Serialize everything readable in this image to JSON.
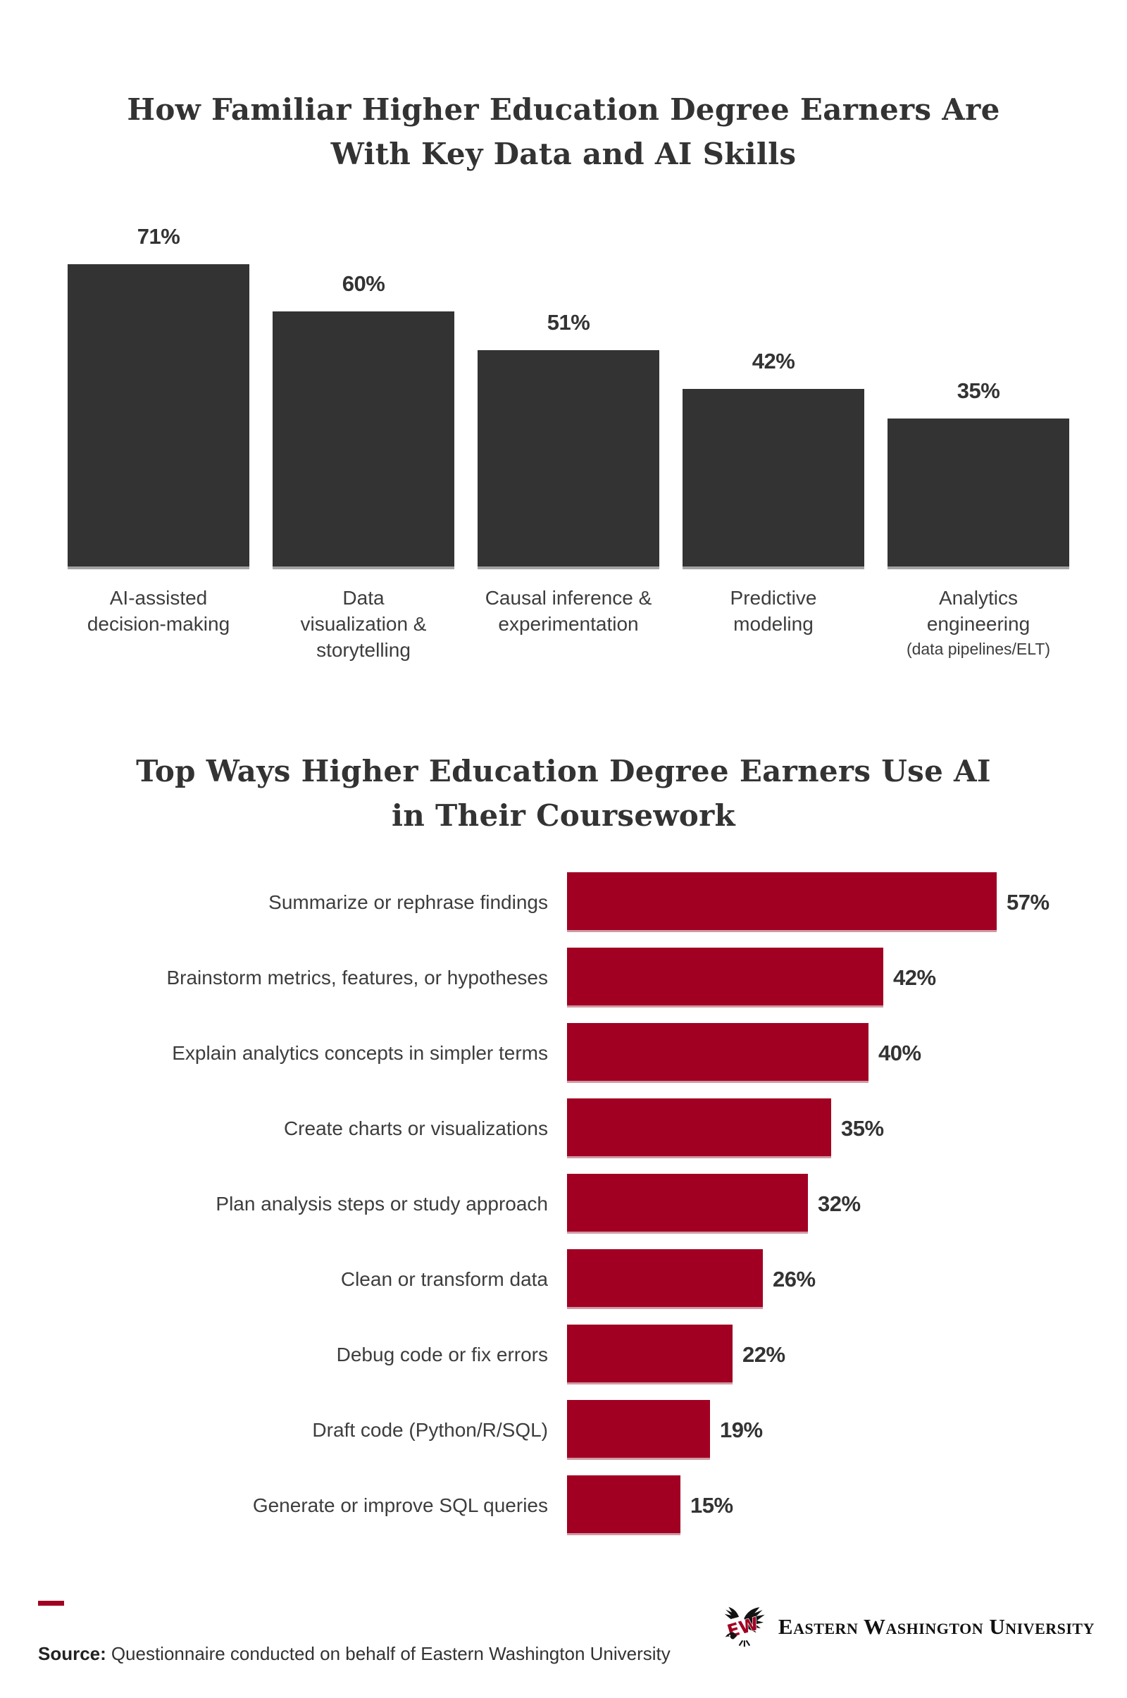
{
  "colors": {
    "bar_dark": "#333333",
    "accent_red": "#A10022",
    "title_text": "#333333",
    "body_text": "#3d3d3d",
    "logo_text": "#111111"
  },
  "chart1": {
    "title_line1": "How Familiar Higher Education Degree Earners Are",
    "title_line2": "With Key Data and AI Skills",
    "bars": [
      {
        "value_label": "71%",
        "line1": "AI-assisted",
        "line2": "decision-making"
      },
      {
        "value_label": "60%",
        "line1": "Data",
        "line2": "visualization &",
        "line3": "storytelling"
      },
      {
        "value_label": "51%",
        "line1": "Causal inference &",
        "line2": "experimentation"
      },
      {
        "value_label": "42%",
        "line1": "Predictive",
        "line2": "modeling"
      },
      {
        "value_label": "35%",
        "line1": "Analytics",
        "line2": "engineering",
        "sub": "(data pipelines/ELT)"
      }
    ]
  },
  "chart2": {
    "title_line1": "Top Ways Higher Education Degree Earners Use AI",
    "title_line2": "in Their Coursework",
    "rows": [
      {
        "label": "Summarize or rephrase findings",
        "value_label": "57%"
      },
      {
        "label": "Brainstorm metrics, features, or hypotheses",
        "value_label": "42%"
      },
      {
        "label": "Explain analytics concepts in simpler terms",
        "value_label": "40%"
      },
      {
        "label": "Create charts or visualizations",
        "value_label": "35%"
      },
      {
        "label": "Plan analysis steps or study approach",
        "value_label": "32%"
      },
      {
        "label": "Clean or transform data",
        "value_label": "26%"
      },
      {
        "label": "Debug code or fix errors",
        "value_label": "22%"
      },
      {
        "label": "Draft code (Python/R/SQL)",
        "value_label": "19%"
      },
      {
        "label": "Generate or improve SQL queries",
        "value_label": "15%"
      }
    ]
  },
  "footer": {
    "source_prefix": "Source:",
    "source_text": "Questionnaire conducted on behalf of Eastern Washington University",
    "logo_text": "Eastern Washington University"
  },
  "chart_data": [
    {
      "type": "bar",
      "orientation": "vertical",
      "title": "How Familiar Higher Education Degree Earners Are With Key Data and AI Skills",
      "categories": [
        "AI-assisted decision-making",
        "Data visualization & storytelling",
        "Causal inference & experimentation",
        "Predictive modeling",
        "Analytics engineering (data pipelines/ELT)"
      ],
      "values": [
        71,
        60,
        51,
        42,
        35
      ],
      "value_labels": [
        "71%",
        "60%",
        "51%",
        "42%",
        "35%"
      ],
      "bar_color": "#333333",
      "ylim": [
        0,
        80
      ],
      "grid": false,
      "legend": "none"
    },
    {
      "type": "bar",
      "orientation": "horizontal",
      "title": "Top Ways Higher Education Degree Earners Use AI in Their Coursework",
      "categories": [
        "Summarize or rephrase findings",
        "Brainstorm metrics, features, or hypotheses",
        "Explain analytics concepts in simpler terms",
        "Create charts or visualizations",
        "Plan analysis steps or study approach",
        "Clean or transform data",
        "Debug code or fix errors",
        "Draft code (Python/R/SQL)",
        "Generate or improve SQL queries"
      ],
      "values": [
        57,
        42,
        40,
        35,
        32,
        26,
        22,
        19,
        15
      ],
      "value_labels": [
        "57%",
        "42%",
        "40%",
        "35%",
        "32%",
        "26%",
        "22%",
        "19%",
        "15%"
      ],
      "bar_color": "#A10022",
      "xlim": [
        0,
        62
      ],
      "grid": false,
      "legend": "none"
    }
  ]
}
